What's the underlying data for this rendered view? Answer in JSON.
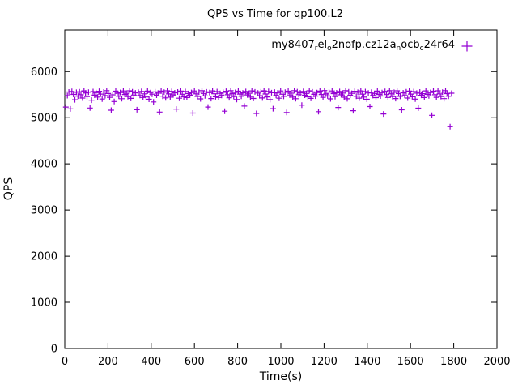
{
  "title": "QPS vs Time for qp100.L2",
  "colors": {
    "series": "#9400d3",
    "axis": "#000000",
    "background": "#ffffff"
  },
  "legend": {
    "label_plain": "my8407_rel_o2nofp.cz12a_nocb_c24r64",
    "marker": "plus",
    "segments": [
      {
        "t": "my8407"
      },
      {
        "t": "r",
        "sub": true
      },
      {
        "t": "el"
      },
      {
        "t": "o",
        "sub": true
      },
      {
        "t": "2nofp.cz12a"
      },
      {
        "t": "n",
        "sub": true
      },
      {
        "t": "ocb"
      },
      {
        "t": "c",
        "sub": true
      },
      {
        "t": "24r64"
      }
    ]
  },
  "chart_data": {
    "type": "scatter",
    "title": "QPS vs Time for qp100.L2",
    "xlabel": "Time(s)",
    "ylabel": "QPS",
    "xlim": [
      0,
      2000
    ],
    "ylim": [
      0,
      6900
    ],
    "xticks": [
      0,
      200,
      400,
      600,
      800,
      1000,
      1200,
      1400,
      1600,
      1800,
      2000
    ],
    "yticks": [
      0,
      1000,
      2000,
      3000,
      4000,
      5000,
      6000
    ],
    "grid": false,
    "legend_position": "top-right-inside",
    "marker": "plus",
    "series": [
      {
        "name": "my8407_rel_o2nofp.cz12a_nocb_c24r64",
        "x_start": 5,
        "x_step": 7,
        "y": [
          5230,
          5478,
          5556,
          5190,
          5570,
          5505,
          5388,
          5549,
          5468,
          5562,
          5497,
          5425,
          5581,
          5536,
          5458,
          5551,
          5209,
          5379,
          5566,
          5488,
          5542,
          5447,
          5573,
          5512,
          5404,
          5556,
          5478,
          5587,
          5523,
          5441,
          5161,
          5496,
          5350,
          5574,
          5531,
          5463,
          5547,
          5412,
          5579,
          5502,
          5528,
          5456,
          5584,
          5419,
          5563,
          5491,
          5537,
          5172,
          5554,
          5482,
          5569,
          5437,
          5516,
          5448,
          5576,
          5399,
          5545,
          5509,
          5341,
          5561,
          5486,
          5533,
          5121,
          5577,
          5466,
          5552,
          5429,
          5583,
          5514,
          5444,
          5571,
          5493,
          5539,
          5186,
          5557,
          5422,
          5578,
          5507,
          5451,
          5568,
          5435,
          5524,
          5489,
          5546,
          5101,
          5580,
          5517,
          5461,
          5553,
          5408,
          5585,
          5526,
          5472,
          5559,
          5231,
          5543,
          5415,
          5582,
          5519,
          5453,
          5565,
          5438,
          5527,
          5484,
          5550,
          5141,
          5572,
          5498,
          5433,
          5587,
          5521,
          5459,
          5548,
          5393,
          5575,
          5511,
          5464,
          5538,
          5251,
          5567,
          5494,
          5529,
          5446,
          5581,
          5416,
          5558,
          5091,
          5534,
          5476,
          5562,
          5427,
          5584,
          5513,
          5449,
          5569,
          5392,
          5541,
          5196,
          5555,
          5483,
          5536,
          5421,
          5579,
          5508,
          5462,
          5551,
          5112,
          5574,
          5492,
          5530,
          5444,
          5586,
          5411,
          5564,
          5499,
          5537,
          5271,
          5570,
          5486,
          5525,
          5452,
          5583,
          5418,
          5559,
          5506,
          5467,
          5544,
          5131,
          5576,
          5503,
          5439,
          5588,
          5515,
          5471,
          5554,
          5407,
          5580,
          5522,
          5456,
          5540,
          5221,
          5568,
          5495,
          5532,
          5443,
          5585,
          5409,
          5561,
          5487,
          5528,
          5151,
          5573,
          5463,
          5549,
          5424,
          5581,
          5510,
          5447,
          5566,
          5398,
          5535,
          5241,
          5553,
          5479,
          5526,
          5434,
          5577,
          5504,
          5469,
          5542,
          5081,
          5571,
          5501,
          5438,
          5587,
          5518,
          5457,
          5550,
          5414,
          5583,
          5524,
          5462,
          5171,
          5539,
          5481,
          5560,
          5426,
          5578,
          5512,
          5454,
          5565,
          5402,
          5533,
          5206,
          5556,
          5485,
          5520,
          5436,
          5582,
          5506,
          5473,
          5547,
          5051,
          5575,
          5497,
          5441,
          5584,
          5516,
          5459,
          5552,
          5413,
          5586,
          5522,
          5464,
          4805,
          5531
        ]
      }
    ]
  }
}
